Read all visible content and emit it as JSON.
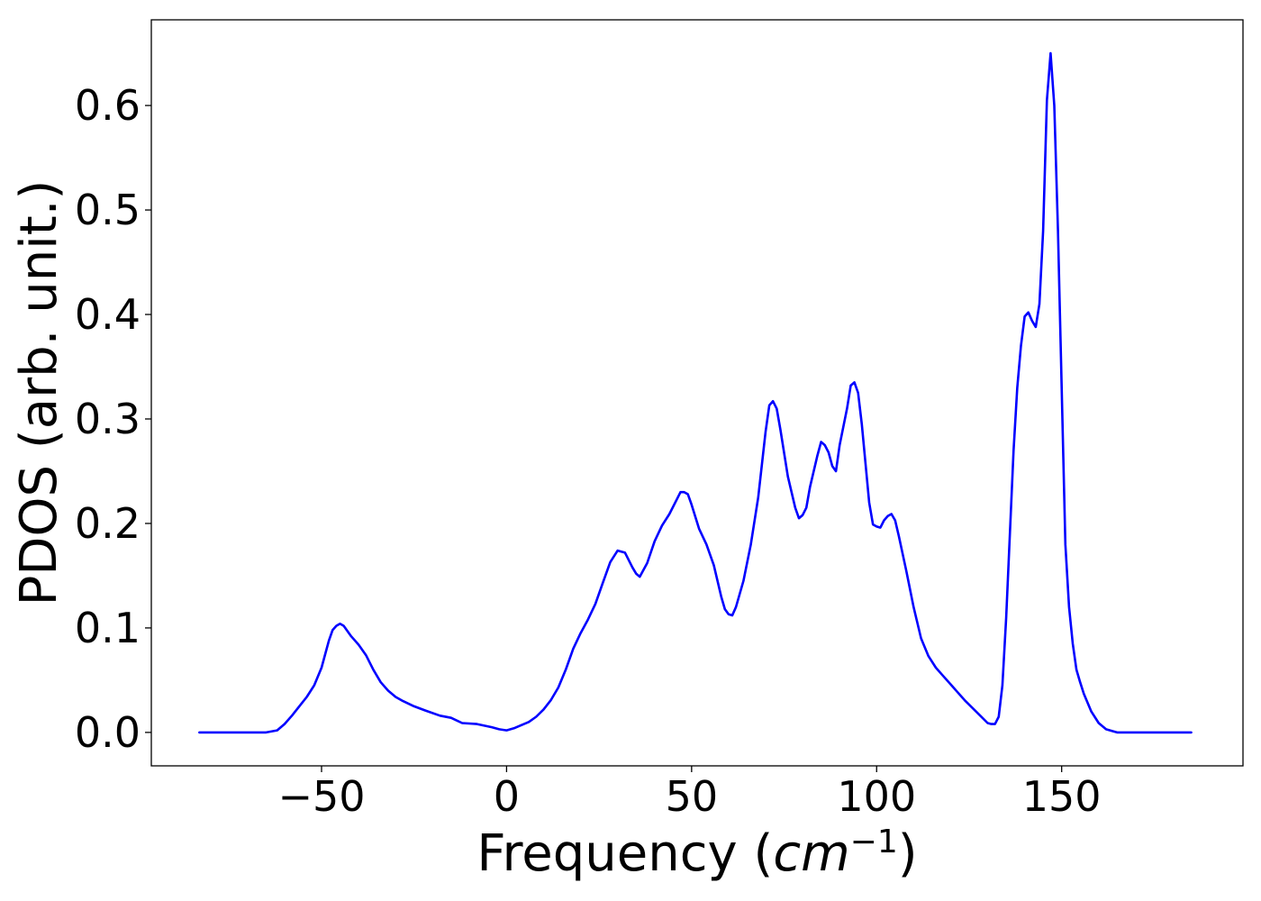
{
  "chart_data": {
    "type": "line",
    "title": "",
    "xlabel": {
      "prefix": "Frequency (",
      "math": "cm",
      "sup": "−1",
      "suffix": ")"
    },
    "ylabel": "PDOS (arb. unit.)",
    "xlim": [
      -96,
      199
    ],
    "ylim": [
      -0.032,
      0.682
    ],
    "xticks": [
      -50,
      0,
      50,
      100,
      150
    ],
    "xtick_labels": [
      "−50",
      "0",
      "50",
      "100",
      "150"
    ],
    "yticks": [
      0.0,
      0.1,
      0.2,
      0.3,
      0.4,
      0.5,
      0.6
    ],
    "ytick_labels": [
      "0.0",
      "0.1",
      "0.2",
      "0.3",
      "0.4",
      "0.5",
      "0.6"
    ],
    "grid": false,
    "legend": "none",
    "series": [
      {
        "color": "#0000ff",
        "x": [
          -83,
          -70,
          -65,
          -62,
          -60,
          -58,
          -56,
          -54,
          -52,
          -50,
          -49,
          -48,
          -47,
          -46,
          -45,
          -44,
          -43,
          -42,
          -40,
          -38,
          -36,
          -34,
          -32,
          -30,
          -28,
          -25,
          -22,
          -18,
          -15,
          -12,
          -8,
          -4,
          -2,
          0,
          2,
          4,
          6,
          8,
          10,
          12,
          14,
          16,
          18,
          20,
          22,
          24,
          26,
          28,
          30,
          32,
          34,
          35,
          36,
          38,
          40,
          42,
          44,
          46,
          47,
          48,
          49,
          50,
          52,
          54,
          56,
          58,
          59,
          60,
          61,
          62,
          64,
          66,
          68,
          70,
          71,
          72,
          73,
          74,
          76,
          78,
          79,
          80,
          81,
          82,
          84,
          85,
          86,
          87,
          88,
          89,
          90,
          92,
          93,
          94,
          95,
          96,
          98,
          99,
          100,
          101,
          102,
          103,
          104,
          105,
          106,
          108,
          110,
          112,
          114,
          116,
          118,
          120,
          122,
          124,
          126,
          128,
          130,
          131,
          132,
          133,
          134,
          135,
          136,
          137,
          138,
          139,
          140,
          141,
          142,
          143,
          144,
          145,
          146,
          147,
          148,
          149,
          150,
          151,
          152,
          153,
          154,
          155,
          156,
          158,
          160,
          162,
          164,
          165,
          166,
          168,
          170,
          175,
          185
        ],
        "y": [
          0.0,
          0.0,
          0.0,
          0.002,
          0.008,
          0.016,
          0.025,
          0.034,
          0.045,
          0.062,
          0.075,
          0.088,
          0.098,
          0.102,
          0.104,
          0.102,
          0.097,
          0.092,
          0.084,
          0.074,
          0.06,
          0.048,
          0.04,
          0.034,
          0.03,
          0.025,
          0.021,
          0.016,
          0.014,
          0.009,
          0.008,
          0.005,
          0.003,
          0.002,
          0.004,
          0.007,
          0.01,
          0.015,
          0.022,
          0.031,
          0.043,
          0.06,
          0.08,
          0.095,
          0.108,
          0.123,
          0.143,
          0.163,
          0.174,
          0.172,
          0.158,
          0.152,
          0.149,
          0.162,
          0.183,
          0.198,
          0.209,
          0.223,
          0.23,
          0.23,
          0.228,
          0.218,
          0.195,
          0.18,
          0.16,
          0.13,
          0.118,
          0.113,
          0.112,
          0.12,
          0.145,
          0.18,
          0.225,
          0.288,
          0.313,
          0.317,
          0.31,
          0.29,
          0.245,
          0.215,
          0.205,
          0.208,
          0.215,
          0.235,
          0.265,
          0.278,
          0.275,
          0.268,
          0.255,
          0.25,
          0.275,
          0.31,
          0.332,
          0.335,
          0.325,
          0.295,
          0.22,
          0.199,
          0.197,
          0.196,
          0.203,
          0.207,
          0.209,
          0.203,
          0.188,
          0.155,
          0.12,
          0.09,
          0.073,
          0.062,
          0.054,
          0.046,
          0.038,
          0.03,
          0.023,
          0.016,
          0.009,
          0.008,
          0.008,
          0.015,
          0.045,
          0.11,
          0.19,
          0.27,
          0.33,
          0.37,
          0.398,
          0.402,
          0.394,
          0.388,
          0.41,
          0.48,
          0.605,
          0.65,
          0.6,
          0.48,
          0.33,
          0.18,
          0.12,
          0.085,
          0.06,
          0.048,
          0.037,
          0.02,
          0.009,
          0.003,
          0.001,
          0.0,
          0.0,
          0.0,
          0.0,
          0.0,
          0.0
        ]
      }
    ]
  }
}
